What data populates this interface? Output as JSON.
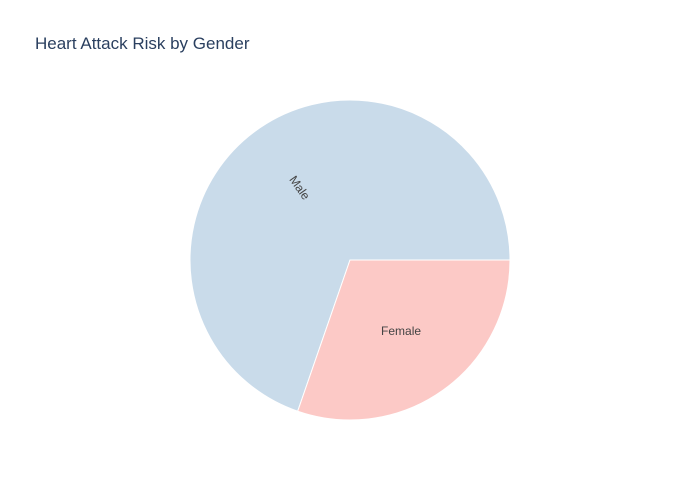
{
  "chart_data": {
    "type": "pie",
    "title": "Heart Attack Risk by Gender",
    "slices": [
      {
        "label": "Male",
        "value": 69.7,
        "color": "#c9dbea"
      },
      {
        "label": "Female",
        "value": 30.3,
        "color": "#fcc9c6"
      }
    ]
  }
}
